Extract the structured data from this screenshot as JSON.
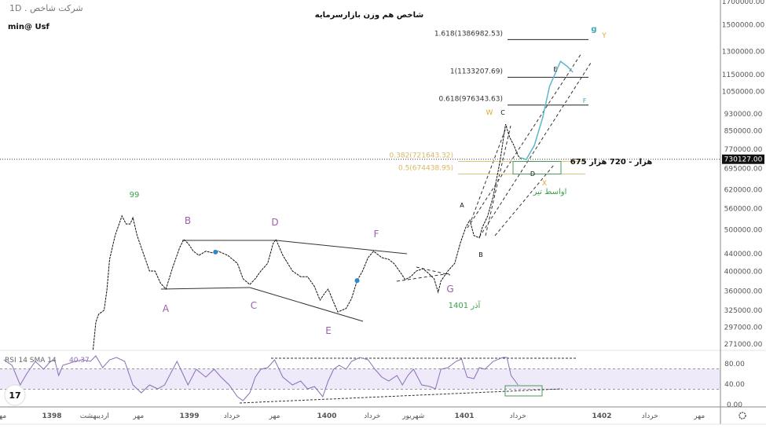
{
  "header": {
    "symbol_label": "1D . شرکت شاخص",
    "user_label": "min@ Usf",
    "title": "شاخص هم وزن بازارسرمایه"
  },
  "chart_data": [
    {
      "type": "line",
      "pane": "price",
      "title": "شاخص هم وزن بازارسرمایه",
      "x_unit": "solar hijri year",
      "y_scale": "log",
      "ylim": [
        271000,
        1700000
      ],
      "y_ticks": [
        1700000,
        1500000,
        1300000,
        1150000,
        1050000,
        930000,
        850000,
        770000,
        695000,
        620000,
        560000,
        500000,
        440000,
        400000,
        360000,
        325000,
        297000,
        271000
      ],
      "y_tick_labels": [
        "1700000.00",
        "1500000.00",
        "1300000.00",
        "1150000.00",
        "1050000.00",
        "930000.00",
        "850000.00",
        "770000.00",
        "695000.00",
        "620000.00",
        "560000.00",
        "500000.00",
        "440000.00",
        "400000.00",
        "360000.00",
        "325000.00",
        "297000.00",
        "271000.00"
      ],
      "current_price": 730127,
      "current_price_label": "730127.00",
      "series": [
        {
          "style": "dashed-black",
          "points": [
            [
              1398.3,
              263000
            ],
            [
              1398.32,
              305000
            ],
            [
              1398.34,
              318000
            ],
            [
              1398.38,
              325000
            ],
            [
              1398.4,
              361000
            ],
            [
              1398.42,
              427000
            ],
            [
              1398.46,
              485000
            ],
            [
              1398.48,
              506000
            ],
            [
              1398.51,
              539000
            ],
            [
              1398.54,
              516000
            ],
            [
              1398.57,
              516000
            ],
            [
              1398.59,
              534000
            ],
            [
              1398.62,
              485000
            ],
            [
              1398.66,
              446000
            ],
            [
              1398.71,
              401000
            ],
            [
              1398.75,
              401000
            ],
            [
              1398.79,
              376000
            ],
            [
              1398.83,
              364000
            ],
            [
              1398.88,
              410000
            ],
            [
              1398.93,
              455000
            ],
            [
              1398.96,
              475000
            ],
            [
              1398.99,
              465000
            ],
            [
              1399.03,
              446000
            ],
            [
              1399.07,
              436000
            ],
            [
              1399.12,
              446000
            ],
            [
              1399.17,
              442000
            ],
            [
              1399.21,
              446000
            ],
            [
              1399.28,
              436000
            ],
            [
              1399.35,
              418000
            ],
            [
              1399.39,
              385000
            ],
            [
              1399.44,
              373000
            ],
            [
              1399.48,
              385000
            ],
            [
              1399.52,
              401000
            ],
            [
              1399.57,
              418000
            ],
            [
              1399.61,
              465000
            ],
            [
              1399.63,
              475000
            ],
            [
              1399.68,
              436000
            ],
            [
              1399.75,
              401000
            ],
            [
              1399.81,
              389000
            ],
            [
              1399.86,
              389000
            ],
            [
              1399.91,
              369000
            ],
            [
              1399.95,
              343000
            ],
            [
              1399.99,
              358000
            ],
            [
              1400.01,
              364000
            ],
            [
              1400.05,
              339000
            ],
            [
              1400.08,
              322000
            ],
            [
              1400.14,
              328000
            ],
            [
              1400.18,
              346000
            ],
            [
              1400.22,
              381000
            ],
            [
              1400.26,
              401000
            ],
            [
              1400.3,
              431000
            ],
            [
              1400.34,
              446000
            ],
            [
              1400.4,
              431000
            ],
            [
              1400.45,
              427000
            ],
            [
              1400.49,
              417000
            ],
            [
              1400.54,
              396000
            ],
            [
              1400.57,
              383000
            ],
            [
              1400.61,
              389000
            ],
            [
              1400.65,
              401000
            ],
            [
              1400.7,
              406000
            ],
            [
              1400.74,
              396000
            ],
            [
              1400.78,
              385000
            ],
            [
              1400.81,
              358000
            ],
            [
              1400.83,
              380000
            ],
            [
              1400.88,
              401000
            ],
            [
              1400.93,
              418000
            ],
            [
              1400.97,
              465000
            ],
            [
              1401.01,
              506000
            ],
            [
              1401.04,
              527000
            ],
            [
              1401.07,
              485000
            ],
            [
              1401.11,
              479000
            ],
            [
              1401.13,
              506000
            ],
            [
              1401.17,
              539000
            ],
            [
              1401.21,
              598000
            ],
            [
              1401.26,
              723000
            ],
            [
              1401.3,
              881000
            ],
            [
              1401.33,
              821000
            ],
            [
              1401.36,
              787000
            ],
            [
              1401.39,
              745000
            ],
            [
              1401.41,
              732000
            ]
          ]
        },
        {
          "style": "projection-teal",
          "color": "#5bb8c8",
          "points": [
            [
              1401.41,
              736000
            ],
            [
              1401.45,
              729000
            ],
            [
              1401.51,
              787000
            ],
            [
              1401.57,
              912000
            ],
            [
              1401.62,
              1079000
            ],
            [
              1401.7,
              1234000
            ],
            [
              1401.75,
              1200000
            ],
            [
              1401.79,
              1164000
            ]
          ]
        }
      ],
      "markers": [
        [
          1399.19,
          444000
        ],
        [
          1400.22,
          381000
        ]
      ],
      "fib_levels": [
        {
          "ratio": 1.618,
          "price": 1386982.53,
          "label": "1.618(1386982.53)",
          "color": "#222222"
        },
        {
          "ratio": 1,
          "price": 1133207.69,
          "label": "1(1133207.69)",
          "color": "#222222"
        },
        {
          "ratio": 0.618,
          "price": 976343.63,
          "label": "0.618(976343.63)",
          "color": "#222222"
        },
        {
          "ratio": 0.382,
          "price": 721643.32,
          "label": "0.382(721643.32)",
          "color": "#d9c77a"
        },
        {
          "ratio": 0.5,
          "price": 674438.95,
          "label": "0.5(674438.95)",
          "color": "#d9c77a"
        }
      ],
      "annotations": {
        "peak_99": "99",
        "wave_labels": [
          "A",
          "B",
          "C",
          "D",
          "E",
          "F",
          "G"
        ],
        "azar_1401": "آذر 1401",
        "small_labels": [
          "A",
          "B",
          "C",
          "D",
          "E",
          "F"
        ],
        "wxy_labels": [
          "W",
          "X",
          "Y"
        ],
        "g_label": "g",
        "target_zone": "675 هزار - 720 هزار",
        "mid_tir": "اواسط تیر"
      }
    },
    {
      "type": "line",
      "pane": "rsi",
      "legend": "RSI 14 SMA 14",
      "legend_value": "40.37",
      "ylim": [
        0,
        100
      ],
      "y_ticks": [
        80,
        40,
        0
      ],
      "y_tick_labels": [
        "80.00",
        "40.00",
        "0.00"
      ],
      "band": [
        30,
        70
      ],
      "color": "#8a6fb5",
      "points": [
        [
          1397.65,
          87.7
        ],
        [
          1397.71,
          76.9
        ],
        [
          1397.77,
          38.5
        ],
        [
          1397.82,
          61.5
        ],
        [
          1397.88,
          84.6
        ],
        [
          1397.94,
          69.2
        ],
        [
          1397.99,
          84.6
        ],
        [
          1398.02,
          87.7
        ],
        [
          1398.05,
          56.9
        ],
        [
          1398.08,
          76.9
        ],
        [
          1398.17,
          84.6
        ],
        [
          1398.22,
          87.7
        ],
        [
          1398.28,
          84.6
        ],
        [
          1398.32,
          95.4
        ],
        [
          1398.37,
          72.3
        ],
        [
          1398.42,
          87.7
        ],
        [
          1398.47,
          92.3
        ],
        [
          1398.53,
          84.6
        ],
        [
          1398.59,
          38.5
        ],
        [
          1398.65,
          23.1
        ],
        [
          1398.71,
          38.5
        ],
        [
          1398.77,
          30.8
        ],
        [
          1398.82,
          38.5
        ],
        [
          1398.88,
          69.2
        ],
        [
          1398.91,
          84.6
        ],
        [
          1398.95,
          61.5
        ],
        [
          1398.99,
          38.5
        ],
        [
          1399.05,
          69.2
        ],
        [
          1399.12,
          53.8
        ],
        [
          1399.18,
          69.2
        ],
        [
          1399.23,
          53.8
        ],
        [
          1399.29,
          38.5
        ],
        [
          1399.35,
          15.4
        ],
        [
          1399.39,
          7.7
        ],
        [
          1399.44,
          23.1
        ],
        [
          1399.48,
          53.8
        ],
        [
          1399.52,
          69.2
        ],
        [
          1399.57,
          72.3
        ],
        [
          1399.62,
          87.7
        ],
        [
          1399.68,
          53.8
        ],
        [
          1399.75,
          38.5
        ],
        [
          1399.81,
          46.2
        ],
        [
          1399.86,
          30.8
        ],
        [
          1399.91,
          35.4
        ],
        [
          1399.97,
          15.4
        ],
        [
          1400.01,
          46.2
        ],
        [
          1400.05,
          69.2
        ],
        [
          1400.09,
          76.9
        ],
        [
          1400.14,
          69.2
        ],
        [
          1400.18,
          84.6
        ],
        [
          1400.24,
          92.3
        ],
        [
          1400.3,
          87.7
        ],
        [
          1400.35,
          69.2
        ],
        [
          1400.4,
          53.8
        ],
        [
          1400.45,
          46.2
        ],
        [
          1400.51,
          56.9
        ],
        [
          1400.55,
          38.5
        ],
        [
          1400.59,
          56.9
        ],
        [
          1400.63,
          69.2
        ],
        [
          1400.69,
          38.5
        ],
        [
          1400.75,
          35.4
        ],
        [
          1400.79,
          30.8
        ],
        [
          1400.83,
          69.2
        ],
        [
          1400.88,
          72.3
        ],
        [
          1400.94,
          84.6
        ],
        [
          1400.98,
          89.2
        ],
        [
          1401.02,
          53.8
        ],
        [
          1401.07,
          50.8
        ],
        [
          1401.11,
          72.3
        ],
        [
          1401.15,
          69.2
        ],
        [
          1401.21,
          84.6
        ],
        [
          1401.28,
          92.3
        ],
        [
          1401.31,
          92.3
        ],
        [
          1401.34,
          56.9
        ],
        [
          1401.37,
          46.2
        ],
        [
          1401.39,
          38.5
        ]
      ]
    }
  ],
  "time_axis": [
    {
      "label": "مهر",
      "x": 1397.63
    },
    {
      "label": "1398",
      "x": 1398.0
    },
    {
      "label": "اردیبهشت",
      "x": 1398.31
    },
    {
      "label": "مهر",
      "x": 1398.63
    },
    {
      "label": "1399",
      "x": 1399.0
    },
    {
      "label": "خرداد",
      "x": 1399.31
    },
    {
      "label": "مهر",
      "x": 1399.62
    },
    {
      "label": "1400",
      "x": 1400.0
    },
    {
      "label": "خرداد",
      "x": 1400.33
    },
    {
      "label": "شهریور",
      "x": 1400.63
    },
    {
      "label": "1401",
      "x": 1401.0
    },
    {
      "label": "خرداد",
      "x": 1401.39
    },
    {
      "label": "1402",
      "x": 1402.0
    },
    {
      "label": "خرداد",
      "x": 1402.35
    },
    {
      "label": "مهر",
      "x": 1402.71
    }
  ],
  "colors": {
    "wave_purple": "#9b5fb0",
    "green": "#3aa04a",
    "yellow": "#e0a830",
    "teal": "#3fa8b8",
    "rsi_band": "#efeafa"
  },
  "icons": {
    "settings": "gear-icon",
    "logo": "tradingview-logo"
  }
}
